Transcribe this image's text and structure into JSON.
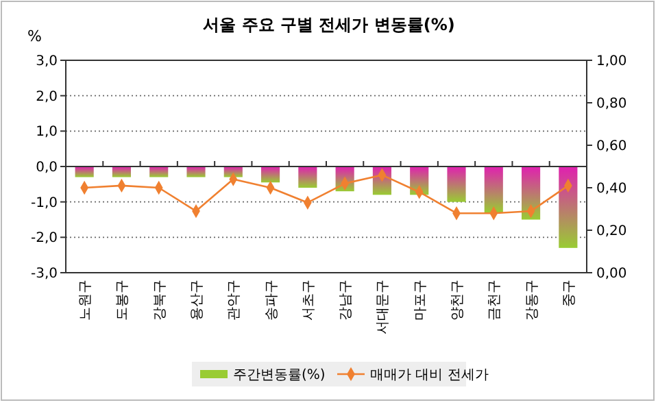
{
  "chart_data": {
    "type": "bar",
    "title": "서울 주요 구별 전세가 변동률(%)",
    "ylabel": "%",
    "categories": [
      "노원구",
      "도봉구",
      "강북구",
      "용산구",
      "관악구",
      "송파구",
      "서초구",
      "강남구",
      "서대문구",
      "마포구",
      "양천구",
      "금천구",
      "강동구",
      "중구"
    ],
    "series": [
      {
        "name": "주간변동률(%)",
        "color": "#99cc33",
        "values": [
          -0.3,
          -0.3,
          -0.3,
          -0.3,
          -0.3,
          -0.45,
          -0.6,
          -0.7,
          -0.8,
          -0.8,
          -1.0,
          -1.3,
          -1.5,
          -2.3
        ]
      },
      {
        "name": "매매가 대비 전세가",
        "type": "line",
        "axis": "y2",
        "color": "#f08030",
        "marker": "diamond",
        "values": [
          0.4,
          0.41,
          0.4,
          0.29,
          0.44,
          0.4,
          0.33,
          0.42,
          0.46,
          0.38,
          0.28,
          0.28,
          0.29,
          0.41
        ]
      }
    ],
    "ylim": [
      -3,
      3
    ],
    "yticks": [
      {
        "value": -3,
        "label": "-3,0"
      },
      {
        "value": -2,
        "label": "-2,0"
      },
      {
        "value": -1,
        "label": "-1,0"
      },
      {
        "value": 0,
        "label": "0,0"
      },
      {
        "value": 1,
        "label": "1,0"
      },
      {
        "value": 2,
        "label": "2,0"
      },
      {
        "value": 3,
        "label": "3,0"
      }
    ],
    "y2lim": [
      0,
      1
    ],
    "y2ticks": [
      {
        "value": 0,
        "label": "0,00"
      },
      {
        "value": 0.2,
        "label": "0,20"
      },
      {
        "value": 0.4,
        "label": "0,40"
      },
      {
        "value": 0.6,
        "label": "0,60"
      },
      {
        "value": 0.8,
        "label": "0,80"
      },
      {
        "value": 1,
        "label": "1,00"
      }
    ],
    "grid": "y",
    "legend": "bottom"
  }
}
